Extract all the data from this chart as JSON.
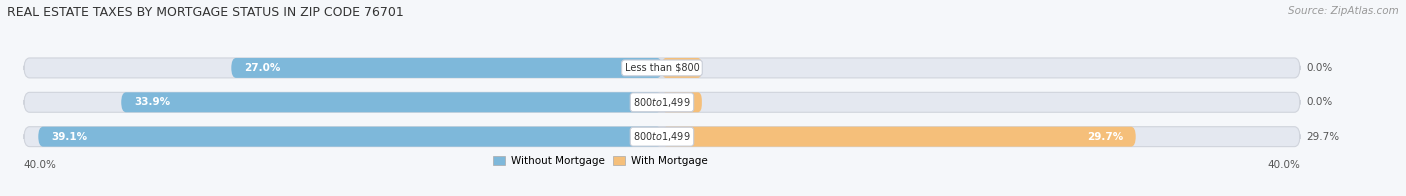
{
  "title": "REAL ESTATE TAXES BY MORTGAGE STATUS IN ZIP CODE 76701",
  "source": "Source: ZipAtlas.com",
  "bars": [
    {
      "label": "Less than $800",
      "without_mortgage": 27.0,
      "with_mortgage": 0.0
    },
    {
      "label": "$800 to $1,499",
      "without_mortgage": 33.9,
      "with_mortgage": 0.0
    },
    {
      "label": "$800 to $1,499",
      "without_mortgage": 39.1,
      "with_mortgage": 29.7
    }
  ],
  "xlim": 40.0,
  "color_without": "#7EB8DA",
  "color_with": "#F5BF7A",
  "bg_color": "#F5F7FA",
  "bar_bg_color": "#E4E8F0",
  "bar_bg_edge": "#D0D4DC",
  "title_fontsize": 9,
  "source_fontsize": 7.5,
  "bar_height": 0.58,
  "legend_label_without": "Without Mortgage",
  "legend_label_with": "With Mortgage",
  "x_axis_label": "40.0%"
}
